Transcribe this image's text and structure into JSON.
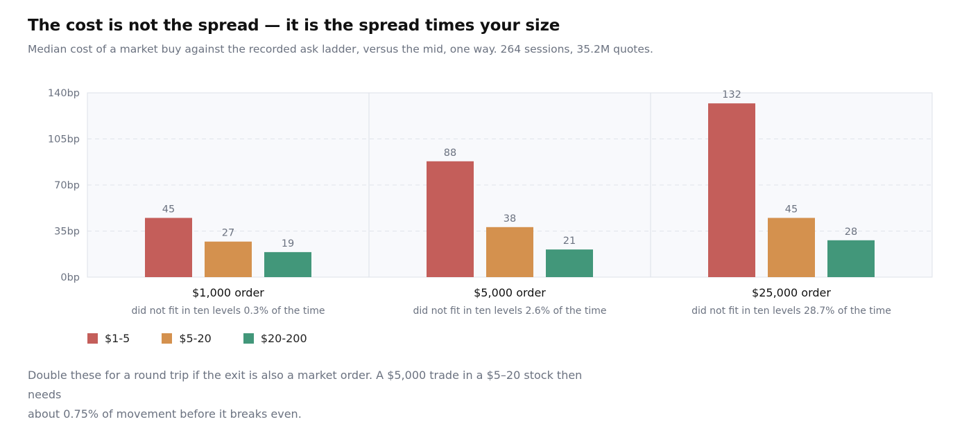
{
  "title": "The cost is not the spread — it is the spread times your size",
  "subtitle": "Median cost of a market buy against the recorded ask ladder, versus the mid, one way. 264 sessions, 35.2M quotes.",
  "footnote_line1": "Double these for a round trip if the exit is also a market order. A $5,000 trade in a $5–20 stock then needs",
  "footnote_line2": "about 0.75% of movement before it breaks even.",
  "colors": {
    "s1": "#c45e5a",
    "s2": "#d4914e",
    "s3": "#42977a"
  },
  "chart_data": {
    "type": "bar",
    "categories": [
      "$1,000 order",
      "$5,000 order",
      "$25,000 order"
    ],
    "category_notes": [
      "did not fit in ten levels 0.3% of the time",
      "did not fit in ten levels 2.6% of the time",
      "did not fit in ten levels 28.7% of the time"
    ],
    "series": [
      {
        "name": "$1-5",
        "values": [
          45,
          88,
          132
        ]
      },
      {
        "name": "$5-20",
        "values": [
          27,
          38,
          45
        ]
      },
      {
        "name": "$20-200",
        "values": [
          19,
          21,
          28
        ]
      }
    ],
    "yticks": [
      "0bp",
      "35bp",
      "70bp",
      "105bp",
      "140bp"
    ],
    "ylim": [
      0,
      140
    ],
    "grid": true,
    "legend": "bottom-left"
  }
}
